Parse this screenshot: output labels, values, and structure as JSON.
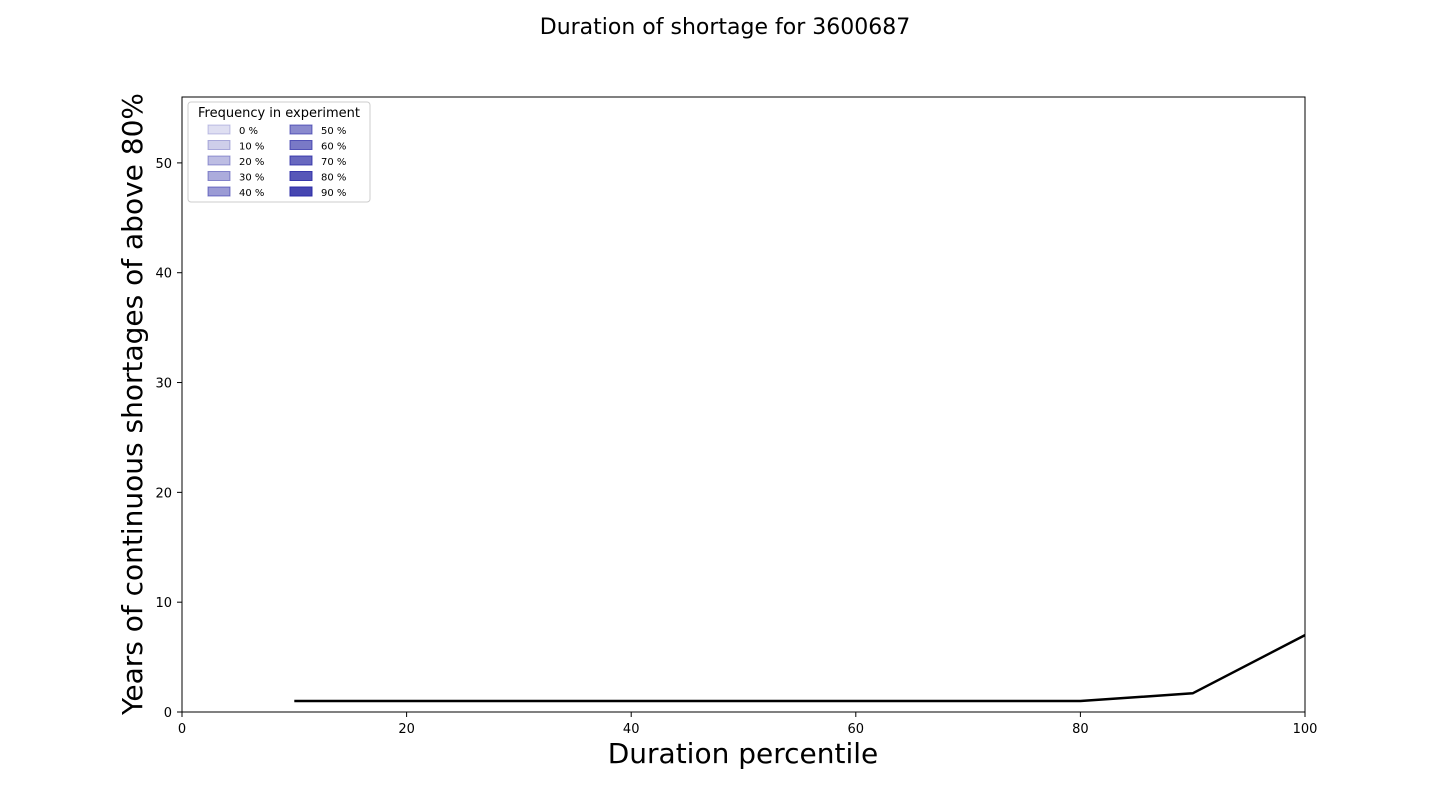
{
  "chart_data": {
    "type": "line",
    "title": "Duration of shortage for 3600687",
    "xlabel": "Duration percentile",
    "ylabel": "Years of continuous shortages of above 80%",
    "xlim": [
      0,
      100
    ],
    "ylim": [
      0,
      56
    ],
    "xticks": [
      "0",
      "20",
      "40",
      "60",
      "80",
      "100"
    ],
    "yticks": [
      "0",
      "10",
      "20",
      "30",
      "40",
      "50"
    ],
    "grid": false,
    "series": [
      {
        "x": [
          10,
          20,
          30,
          40,
          50,
          60,
          70,
          80,
          90,
          100
        ],
        "y": [
          1,
          1,
          1,
          1,
          1,
          1,
          1,
          1,
          1.7,
          7.0
        ],
        "color": "#000000"
      }
    ],
    "legend": {
      "title": "Frequency in experiment",
      "placement": "top-left",
      "entries": [
        {
          "label": "0 %",
          "alpha": 0.15
        },
        {
          "label": "10 %",
          "alpha": 0.23
        },
        {
          "label": "20 %",
          "alpha": 0.31
        },
        {
          "label": "30 %",
          "alpha": 0.39
        },
        {
          "label": "40 %",
          "alpha": 0.47
        },
        {
          "label": "50 %",
          "alpha": 0.55
        },
        {
          "label": "60 %",
          "alpha": 0.63
        },
        {
          "label": "70 %",
          "alpha": 0.71
        },
        {
          "label": "80 %",
          "alpha": 0.79
        },
        {
          "label": "90 %",
          "alpha": 0.87
        }
      ],
      "swatch_color": "#2a2aa5"
    }
  }
}
